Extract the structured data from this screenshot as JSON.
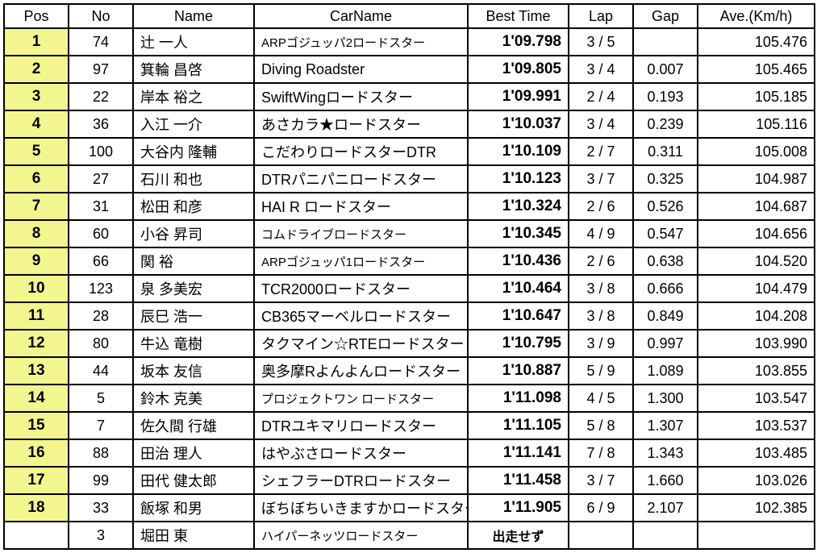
{
  "table": {
    "headers": {
      "pos": "Pos",
      "no": "No",
      "name": "Name",
      "carname": "CarName",
      "besttime": "Best Time",
      "lap": "Lap",
      "gap": "Gap",
      "ave": "Ave.(Km/h)"
    },
    "rows": [
      {
        "pos": "1",
        "no": "74",
        "name": "辻 一人",
        "carname": "ARPゴジュッパ2ロードスター",
        "besttime": "1'09.798",
        "lap": "3 / 5",
        "gap": "",
        "ave": "105.476",
        "carname_small": true
      },
      {
        "pos": "2",
        "no": "97",
        "name": "箕輪 昌啓",
        "carname": "Diving Roadster",
        "besttime": "1'09.805",
        "lap": "3 / 4",
        "gap": "0.007",
        "ave": "105.465",
        "carname_small": false
      },
      {
        "pos": "3",
        "no": "22",
        "name": "岸本 裕之",
        "carname": "SwiftWingロードスター",
        "besttime": "1'09.991",
        "lap": "2 / 4",
        "gap": "0.193",
        "ave": "105.185",
        "carname_small": false
      },
      {
        "pos": "4",
        "no": "36",
        "name": "入江 一介",
        "carname": "あさカラ★ロードスター",
        "besttime": "1'10.037",
        "lap": "3 / 4",
        "gap": "0.239",
        "ave": "105.116",
        "carname_small": false
      },
      {
        "pos": "5",
        "no": "100",
        "name": "大谷内 隆輔",
        "carname": "こだわりロードスターDTR",
        "besttime": "1'10.109",
        "lap": "2 / 7",
        "gap": "0.311",
        "ave": "105.008",
        "carname_small": false
      },
      {
        "pos": "6",
        "no": "27",
        "name": "石川 和也",
        "carname": "DTRパニパニロードスター",
        "besttime": "1'10.123",
        "lap": "3 / 7",
        "gap": "0.325",
        "ave": "104.987",
        "carname_small": false
      },
      {
        "pos": "7",
        "no": "31",
        "name": "松田 和彦",
        "carname": "HAI R ロードスター",
        "besttime": "1'10.324",
        "lap": "2 / 6",
        "gap": "0.526",
        "ave": "104.687",
        "carname_small": false
      },
      {
        "pos": "8",
        "no": "60",
        "name": "小谷 昇司",
        "carname": "コムドライブロードスター",
        "besttime": "1'10.345",
        "lap": "4 / 9",
        "gap": "0.547",
        "ave": "104.656",
        "carname_small": true
      },
      {
        "pos": "9",
        "no": "66",
        "name": "関 裕",
        "carname": "ARPゴジュッパ1ロードスター",
        "besttime": "1'10.436",
        "lap": "2 / 6",
        "gap": "0.638",
        "ave": "104.520",
        "carname_small": true
      },
      {
        "pos": "10",
        "no": "123",
        "name": "泉 多美宏",
        "carname": "TCR2000ロードスター",
        "besttime": "1'10.464",
        "lap": "3 / 8",
        "gap": "0.666",
        "ave": "104.479",
        "carname_small": false
      },
      {
        "pos": "11",
        "no": "28",
        "name": "辰巳 浩一",
        "carname": "CB365マーベルロードスター",
        "besttime": "1'10.647",
        "lap": "3 / 8",
        "gap": "0.849",
        "ave": "104.208",
        "carname_small": false
      },
      {
        "pos": "12",
        "no": "80",
        "name": "牛込 竜樹",
        "carname": "タクマイン☆RTEロードスター",
        "besttime": "1'10.795",
        "lap": "3 / 9",
        "gap": "0.997",
        "ave": "103.990",
        "carname_small": false
      },
      {
        "pos": "13",
        "no": "44",
        "name": "坂本 友信",
        "carname": "奥多摩Rよんよんロードスター",
        "besttime": "1'10.887",
        "lap": "5 / 9",
        "gap": "1.089",
        "ave": "103.855",
        "carname_small": false
      },
      {
        "pos": "14",
        "no": "5",
        "name": "鈴木 克美",
        "carname": "プロジェクトワン ロードスター",
        "besttime": "1'11.098",
        "lap": "4 / 5",
        "gap": "1.300",
        "ave": "103.547",
        "carname_small": true
      },
      {
        "pos": "15",
        "no": "7",
        "name": "佐久間 行雄",
        "carname": "DTRユキマリロードスター",
        "besttime": "1'11.105",
        "lap": "5 / 8",
        "gap": "1.307",
        "ave": "103.537",
        "carname_small": false
      },
      {
        "pos": "16",
        "no": "88",
        "name": "田治 理人",
        "carname": "はやぶさロードスター",
        "besttime": "1'11.141",
        "lap": "7 / 8",
        "gap": "1.343",
        "ave": "103.485",
        "carname_small": false
      },
      {
        "pos": "17",
        "no": "99",
        "name": "田代 健太郎",
        "carname": "シェフラーDTRロードスター",
        "besttime": "1'11.458",
        "lap": "3 / 7",
        "gap": "1.660",
        "ave": "103.026",
        "carname_small": false
      },
      {
        "pos": "18",
        "no": "33",
        "name": "飯塚 和男",
        "carname": "ぼちぼちいきますかロードスター",
        "besttime": "1'11.905",
        "lap": "6 / 9",
        "gap": "2.107",
        "ave": "102.385",
        "carname_small": false
      },
      {
        "pos": "",
        "no": "3",
        "name": "堀田 東",
        "carname": "ハイパーネッツロードスター",
        "besttime": "出走せず",
        "lap": "",
        "gap": "",
        "ave": "",
        "carname_small": true,
        "dns": true
      }
    ]
  },
  "style": {
    "pos_bg_color": "#f3f68f",
    "border_color": "#000000",
    "background_color": "#ffffff",
    "font_size_normal": 18,
    "font_size_small": 15,
    "font_size_bold": 19
  }
}
